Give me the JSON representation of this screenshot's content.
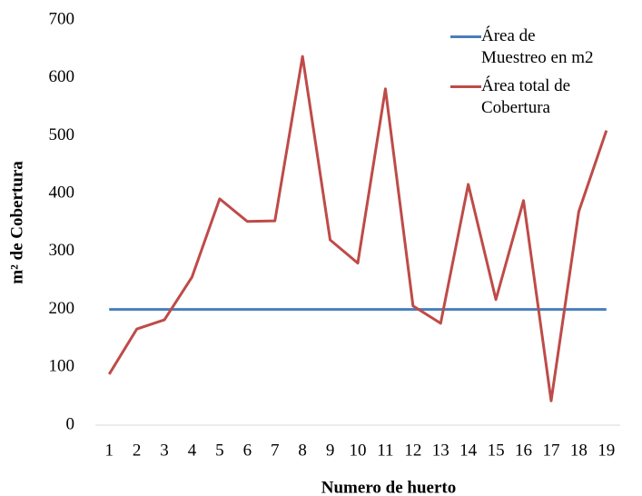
{
  "chart_data": {
    "type": "line",
    "x_label": "Numero de huerto",
    "y_label": "m² de Cobertura",
    "categories": [
      "1",
      "2",
      "3",
      "4",
      "5",
      "6",
      "7",
      "8",
      "9",
      "10",
      "11",
      "12",
      "13",
      "14",
      "15",
      "16",
      "17",
      "18",
      "19"
    ],
    "series": [
      {
        "name": "Área de Muestreo en m2",
        "color": "#4a7ebb",
        "values": [
          200,
          200,
          200,
          200,
          200,
          200,
          200,
          200,
          200,
          200,
          200,
          200,
          200,
          200,
          200,
          200,
          200,
          200,
          200
        ]
      },
      {
        "name": "Área total de Cobertura",
        "color": "#be4b48",
        "values": [
          88,
          166,
          182,
          256,
          391,
          352,
          353,
          637,
          320,
          280,
          581,
          206,
          176,
          416,
          217,
          388,
          42,
          369,
          509
        ]
      }
    ],
    "ylim": [
      0,
      700
    ],
    "yticks": [
      0,
      100,
      200,
      300,
      400,
      500,
      600,
      700
    ],
    "grid": false,
    "legend": "top-right"
  }
}
